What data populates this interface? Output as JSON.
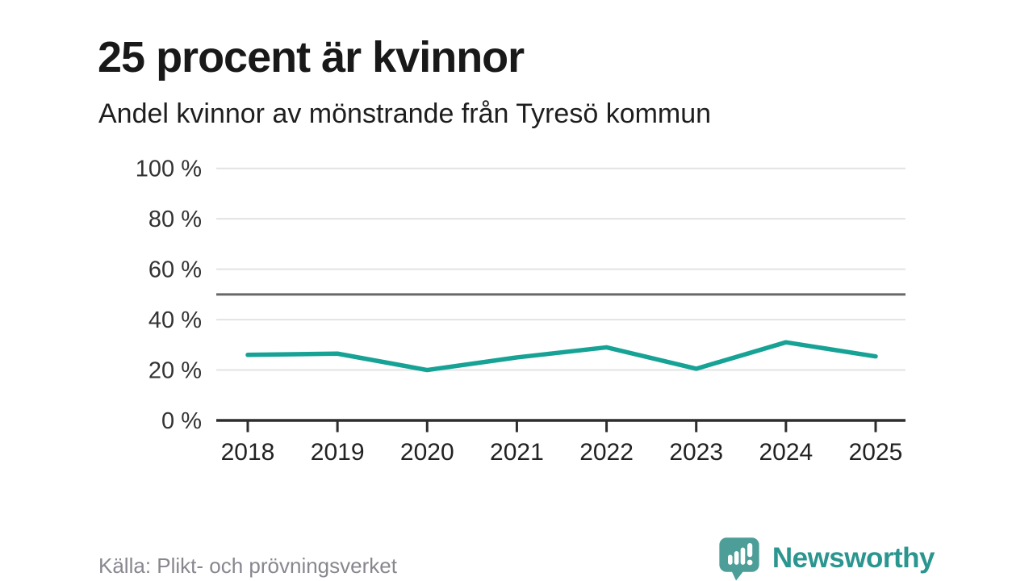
{
  "header": {
    "title": "25 procent är kvinnor",
    "subtitle": "Andel kvinnor av mönstrande från Tyresö kommun"
  },
  "footer": {
    "source": "Källa: Plikt- och prövningsverket",
    "brand": "Newsworthy",
    "logo_icon": "newsworthy-bubble-bar-chart-icon"
  },
  "colors": {
    "title_text": "#191919",
    "line": "#17a296",
    "grid": "#e3e3e3",
    "reference_line": "#686868",
    "axis": "#2d2d2d",
    "tick_label": "#333333",
    "source_text": "#87878f",
    "brand_text": "#2a968f",
    "logo_bubble": "#4d9e98"
  },
  "chart_data": {
    "type": "line",
    "title": "25 procent är kvinnor",
    "subtitle": "Andel kvinnor av mönstrande från Tyresö kommun",
    "x": [
      2018,
      2019,
      2020,
      2021,
      2022,
      2023,
      2024,
      2025
    ],
    "series": [
      {
        "name": "Andel kvinnor av mönstrande, Tyresö kommun (%)",
        "values": [
          26,
          26.5,
          20,
          25,
          29,
          20.5,
          31,
          25.4
        ]
      }
    ],
    "unit": "%",
    "ylim": [
      0,
      100
    ],
    "yticks": [
      0,
      20,
      40,
      60,
      80,
      100
    ],
    "ytick_suffix": " %",
    "reference_line": 50,
    "grid": true,
    "legend": "none",
    "source": "Källa: Plikt- och prövningsverket"
  }
}
